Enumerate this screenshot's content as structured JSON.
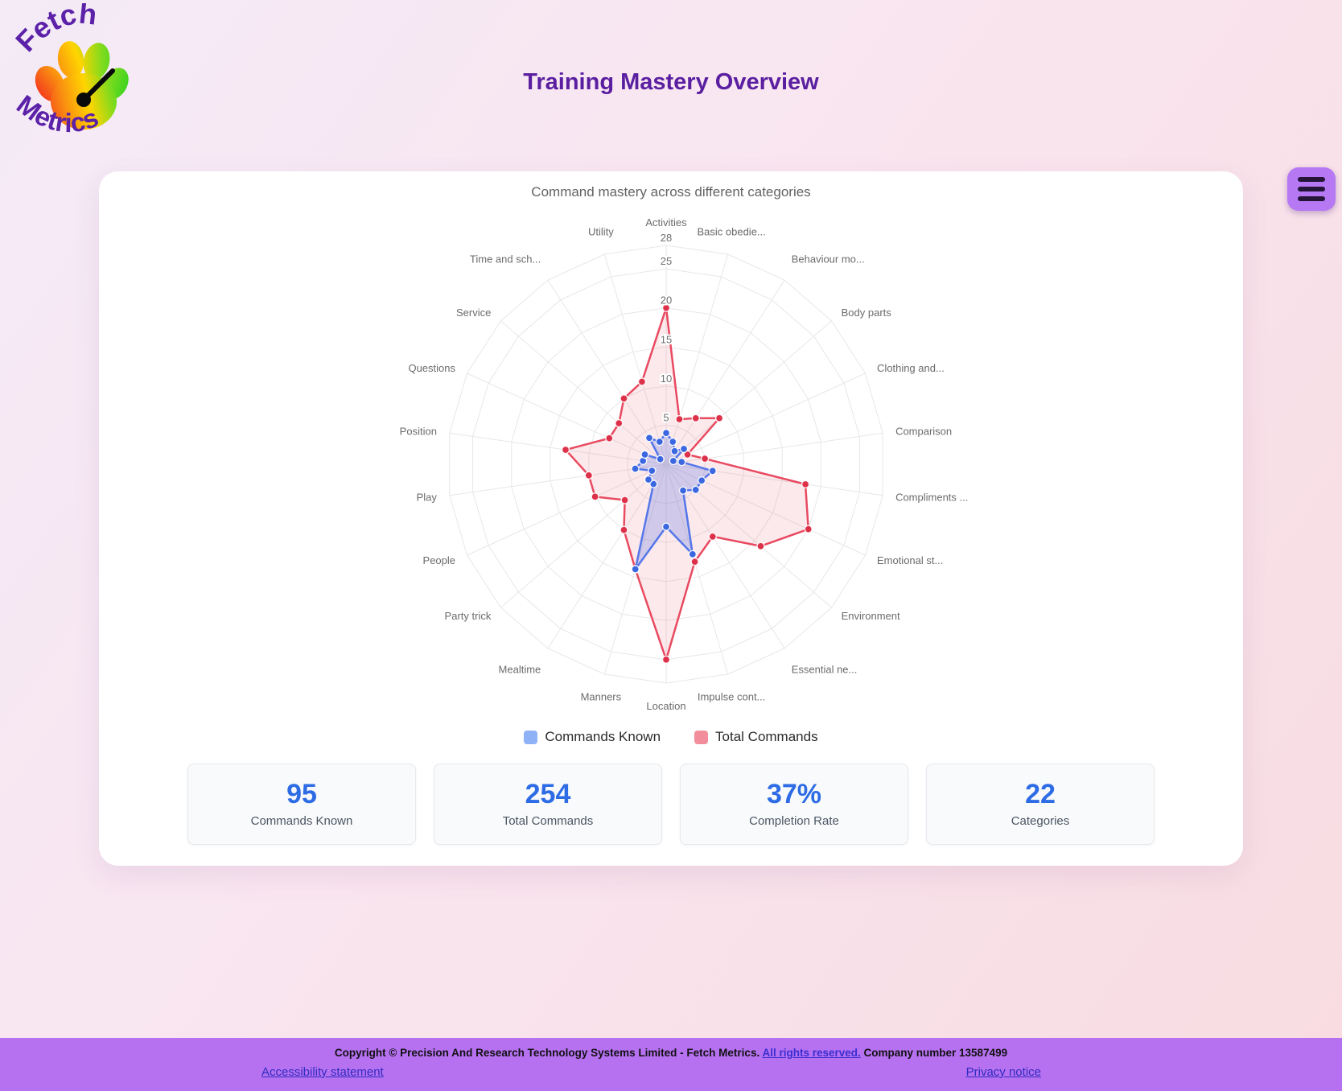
{
  "logo": {
    "line1": "Fetch",
    "line2": "Metrics"
  },
  "header": {
    "title": "Training Mastery Overview"
  },
  "menu": {
    "icon": "hamburger-menu-icon"
  },
  "chart_card": {
    "title": "Command mastery across different categories"
  },
  "chart_data": {
    "type": "radar",
    "title": "Command mastery across different categories",
    "categories": [
      "Activities",
      "Basic obedie...",
      "Behaviour mo...",
      "Body parts",
      "Clothing and...",
      "Comparison",
      "Compliments ...",
      "Emotional st...",
      "Environment",
      "Essential ne...",
      "Impulse cont...",
      "Location",
      "Manners",
      "Mealtime",
      "Party trick",
      "People",
      "Play",
      "Position",
      "Questions",
      "Service",
      "Time and sch...",
      "Utility"
    ],
    "series": [
      {
        "name": "Commands Known",
        "values": [
          4,
          3,
          2,
          3,
          1,
          2,
          6,
          5,
          5,
          4,
          12,
          8,
          14,
          3,
          3,
          2,
          4,
          3,
          3,
          1,
          4,
          3
        ],
        "line_color": "#5577ea",
        "point_color": "#3a66e0",
        "fill_color": "rgba(105,130,230,0.30)",
        "legend_color": "#8fb1f5"
      },
      {
        "name": "Total Commands",
        "values": [
          20,
          6,
          7,
          9,
          3,
          5,
          18,
          20,
          16,
          11,
          13,
          25,
          14,
          10,
          7,
          10,
          10,
          13,
          8,
          8,
          10,
          11
        ],
        "line_color": "#e84a60",
        "point_color": "#dd3049",
        "fill_color": "rgba(235,85,105,0.13)",
        "legend_color": "#f28e9b"
      }
    ],
    "ticks": [
      5,
      10,
      15,
      20,
      25,
      28
    ],
    "rmax": 28,
    "rmin": 0,
    "grid": true,
    "grid_color": "#e7e7e7",
    "legend_position": "bottom"
  },
  "stats": [
    {
      "value": "95",
      "label": "Commands Known"
    },
    {
      "value": "254",
      "label": "Total Commands"
    },
    {
      "value": "37%",
      "label": "Completion Rate"
    },
    {
      "value": "22",
      "label": "Categories"
    }
  ],
  "footer": {
    "copyright_prefix": "Copyright © Precision And Research Technology Systems Limited - Fetch Metrics. ",
    "rights_link": "All rights reserved.",
    "copyright_suffix": " Company number 13587499",
    "links": [
      {
        "label": "Accessibility statement"
      },
      {
        "label": "Privacy notice"
      }
    ]
  },
  "colors": {
    "title": "#5a1fa0",
    "footer_bg": "#b671f1",
    "menu_bg": "#b678f3",
    "stat_number": "#2d6ce5"
  }
}
